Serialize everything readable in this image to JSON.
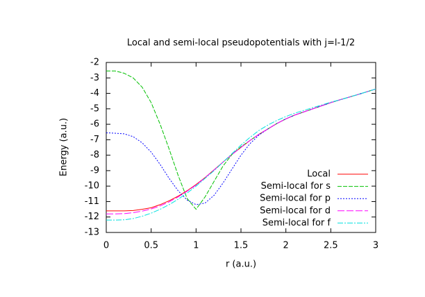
{
  "chart_data": {
    "type": "line",
    "title": "Local and semi-local pseudopotentials with j=l-1/2",
    "x_label": "r (a.u.)",
    "y_label": "Energy (a.u.)",
    "xlim": [
      0,
      3
    ],
    "ylim": [
      -13,
      -2
    ],
    "xticks": [
      0,
      0.5,
      1,
      1.5,
      2,
      2.5,
      3
    ],
    "yticks": [
      -13,
      -12,
      -11,
      -10,
      -9,
      -8,
      -7,
      -6,
      -5,
      -4,
      -3,
      -2
    ],
    "legend": "lower right",
    "x": [
      0,
      0.1,
      0.2,
      0.3,
      0.4,
      0.5,
      0.6,
      0.7,
      0.8,
      0.9,
      1,
      1.1,
      1.2,
      1.3,
      1.4,
      1.5,
      1.6,
      1.7,
      1.8,
      1.9,
      2,
      2.1,
      2.2,
      2.3,
      2.4,
      2.5,
      2.6,
      2.7,
      2.8,
      2.9,
      3
    ],
    "series": [
      {
        "name": "Local",
        "color": "#ff0000",
        "values": [
          -11.6,
          -11.6,
          -11.6,
          -11.58,
          -11.5,
          -11.4,
          -11.2,
          -10.95,
          -10.65,
          -10.3,
          -9.9,
          -9.45,
          -8.95,
          -8.45,
          -7.95,
          -7.5,
          -7.05,
          -6.65,
          -6.3,
          -5.95,
          -5.65,
          -5.4,
          -5.2,
          -5.0,
          -4.8,
          -4.6,
          -4.42,
          -4.25,
          -4.08,
          -3.9,
          -3.72
        ]
      },
      {
        "name": "Semi-local for s",
        "color": "#00c000",
        "values": [
          -2.55,
          -2.55,
          -2.7,
          -3.0,
          -3.6,
          -4.6,
          -6.0,
          -7.6,
          -9.3,
          -10.8,
          -11.5,
          -10.7,
          -9.7,
          -8.7,
          -7.95,
          -7.45,
          -7.05,
          -6.65,
          -6.3,
          -5.95,
          -5.65,
          -5.4,
          -5.2,
          -5.0,
          -4.8,
          -4.6,
          -4.42,
          -4.25,
          -4.08,
          -3.9,
          -3.72
        ]
      },
      {
        "name": "Semi-local for p",
        "color": "#0000ff",
        "values": [
          -6.55,
          -6.58,
          -6.62,
          -6.8,
          -7.2,
          -7.8,
          -8.6,
          -9.5,
          -10.3,
          -10.9,
          -11.2,
          -11.1,
          -10.6,
          -9.8,
          -8.9,
          -8.0,
          -7.25,
          -6.7,
          -6.3,
          -5.95,
          -5.65,
          -5.4,
          -5.2,
          -5.0,
          -4.8,
          -4.6,
          -4.42,
          -4.25,
          -4.08,
          -3.9,
          -3.72
        ]
      },
      {
        "name": "Semi-local for d",
        "color": "#ff00ff",
        "values": [
          -11.8,
          -11.8,
          -11.78,
          -11.72,
          -11.62,
          -11.48,
          -11.28,
          -11.02,
          -10.7,
          -10.33,
          -9.93,
          -9.46,
          -8.96,
          -8.45,
          -7.95,
          -7.5,
          -7.05,
          -6.65,
          -6.3,
          -5.95,
          -5.65,
          -5.4,
          -5.2,
          -5.0,
          -4.8,
          -4.6,
          -4.42,
          -4.25,
          -4.08,
          -3.9,
          -3.72
        ]
      },
      {
        "name": "Semi-local for f",
        "color": "#00e0e0",
        "values": [
          -12.2,
          -12.2,
          -12.18,
          -12.1,
          -11.95,
          -11.75,
          -11.5,
          -11.2,
          -10.85,
          -10.45,
          -10.0,
          -9.5,
          -9.0,
          -8.45,
          -7.9,
          -7.35,
          -6.85,
          -6.4,
          -6.05,
          -5.75,
          -5.5,
          -5.28,
          -5.1,
          -4.92,
          -4.75,
          -4.57,
          -4.42,
          -4.25,
          -4.08,
          -3.9,
          -3.72
        ]
      }
    ]
  }
}
